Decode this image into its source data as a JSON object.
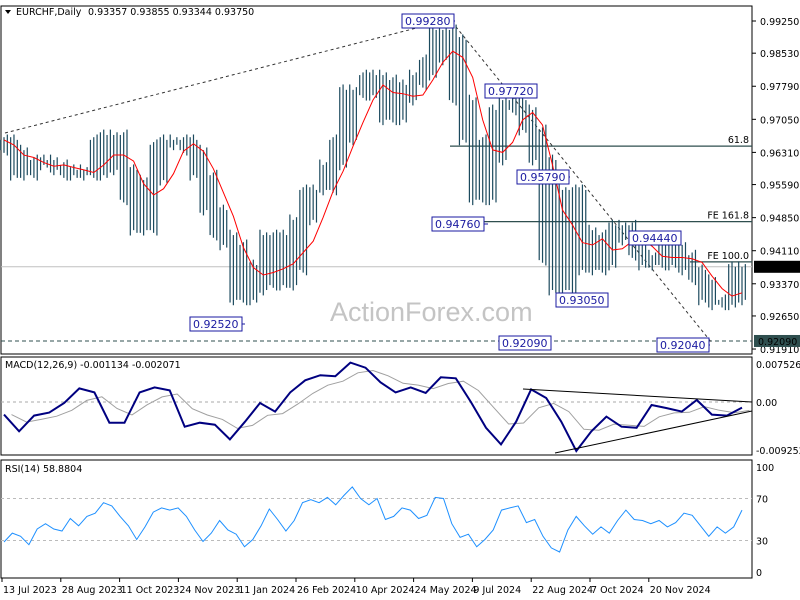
{
  "chart_data": [
    {
      "type": "ohlc",
      "panel": "price",
      "title": "EURCHF,Daily",
      "ohlc_readout": "0.93357 0.93855 0.93344 0.93750",
      "y_ticks": [
        "0.99250",
        "0.98530",
        "0.97790",
        "0.97050",
        "0.96310",
        "0.95590",
        "0.94850",
        "0.94110",
        "0.93370",
        "0.92650",
        "0.91910"
      ],
      "ylim": [
        0.9191,
        0.9925
      ],
      "current_price": "0.93750",
      "marked_level": "0.92090",
      "x_tick_labels": [
        "13 Jul 2023",
        "28 Aug 2023",
        "11 Oct 2023",
        "24 Nov 2023",
        "11 Jan 2024",
        "26 Feb 2024",
        "10 Apr 2024",
        "24 May 2024",
        "9 Jul 2024",
        "22 Aug 2024",
        "7 Oct 2024",
        "20 Nov 2024"
      ],
      "closes": [
        0.9659,
        0.9636,
        0.958,
        0.9603,
        0.9614,
        0.9603,
        0.9592,
        0.958,
        0.9592,
        0.958,
        0.9659,
        0.967,
        0.9592,
        0.9525,
        0.9457,
        0.9569,
        0.9648,
        0.9659,
        0.9659,
        0.9636,
        0.958,
        0.9502,
        0.9446,
        0.9424,
        0.9301,
        0.9323,
        0.9379,
        0.9446,
        0.9334,
        0.9368,
        0.948,
        0.9547,
        0.9547,
        0.9603,
        0.9659,
        0.9771,
        0.9759,
        0.9804,
        0.9793,
        0.9704,
        0.9748,
        0.9782,
        0.9804,
        0.9838,
        0.9905,
        0.9883,
        0.9748,
        0.9659,
        0.9525,
        0.9614,
        0.9726,
        0.9748,
        0.9726,
        0.9681,
        0.9614,
        0.939,
        0.9323,
        0.9547,
        0.9457,
        0.9368,
        0.9379,
        0.9446,
        0.9468,
        0.9435,
        0.9401,
        0.9379,
        0.9379,
        0.9424,
        0.9401,
        0.9368,
        0.9346,
        0.9301,
        0.929,
        0.9301,
        0.9375
      ],
      "overlay": "moving average (red)",
      "annotations": [
        "0.99280",
        "0.97720",
        "0.95790",
        "0.94760",
        "0.94440",
        "0.93050",
        "0.92520",
        "0.92090",
        "0.92040"
      ],
      "levels": [
        {
          "label": "61.8",
          "value": 0.9645
        },
        {
          "label": "FE 161.8",
          "value": 0.9476
        },
        {
          "label": "FE 100.0",
          "value": 0.9386
        }
      ],
      "watermark": "ActionForex.com",
      "colors": {
        "bars": "#1c4a5e",
        "ma": "#ff0000",
        "levels": "#2f4f4f",
        "annotation": "#1a1aa0"
      }
    },
    {
      "type": "line",
      "panel": "macd",
      "title": "MACD(12,26,9) -0.001134 -0.002071",
      "y_ticks": [
        "0.007526",
        "0.00",
        "-0.009252"
      ],
      "ylim": [
        -0.009252,
        0.007526
      ],
      "macd": [
        -0.0025,
        -0.0058,
        -0.0027,
        -0.0021,
        -0.0002,
        0.0027,
        0.0019,
        -0.0041,
        -0.0041,
        0.0019,
        0.0029,
        0.0023,
        -0.0049,
        -0.0041,
        -0.0045,
        -0.0074,
        -0.0039,
        -0.0002,
        -0.0019,
        0.0019,
        0.0043,
        0.0053,
        0.0051,
        0.0078,
        0.0068,
        0.0039,
        0.0019,
        0.0029,
        0.0018,
        0.0049,
        0.0047,
        0.0,
        -0.0051,
        -0.0084,
        -0.0039,
        0.0025,
        0.0008,
        -0.0039,
        -0.0097,
        -0.0058,
        -0.0029,
        -0.0049,
        -0.0051,
        -0.0006,
        -0.0012,
        -0.0019,
        0.0004,
        -0.0025,
        -0.0027,
        -0.0011
      ],
      "colors": {
        "macd": "#000080",
        "signal": "#a0a0a0"
      }
    },
    {
      "type": "line",
      "panel": "rsi",
      "title": "RSI(14) 58.8804",
      "y_ticks": [
        "100",
        "70",
        "30",
        "0"
      ],
      "ylim": [
        0,
        100
      ],
      "levels": [
        70,
        30
      ],
      "values": [
        28.6,
        37,
        34,
        26,
        41,
        46,
        41,
        39,
        51,
        44,
        53,
        56,
        66,
        63,
        53,
        44,
        31,
        43,
        57,
        61,
        59,
        61,
        53,
        40,
        29,
        37,
        49,
        40,
        36,
        24,
        31,
        44,
        60,
        50,
        39,
        49,
        66,
        69,
        66,
        71,
        64,
        73,
        81,
        70,
        64,
        70,
        50,
        53,
        61,
        59,
        51,
        54,
        71,
        70,
        46,
        33,
        36,
        24,
        31,
        40,
        59,
        61,
        63,
        47,
        50,
        34,
        23,
        19,
        40,
        53,
        44,
        36,
        43,
        37,
        49,
        59,
        50,
        49,
        46,
        49,
        43,
        47,
        56,
        54,
        44,
        34,
        43,
        37,
        43,
        59
      ],
      "colors": {
        "rsi": "#1e90ff"
      }
    }
  ]
}
